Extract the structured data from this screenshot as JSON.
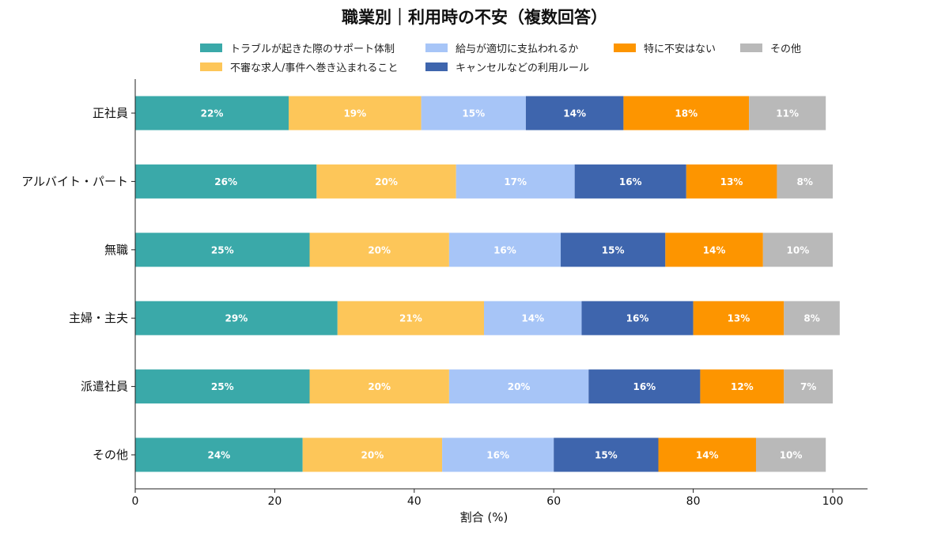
{
  "chart_data": {
    "type": "bar",
    "orientation": "horizontal",
    "stacked": true,
    "title": "職業別｜利用時の不安（複数回答）",
    "xlabel": "割合 (%)",
    "ylabel": "",
    "xlim": [
      0,
      100
    ],
    "xticks": [
      0,
      20,
      40,
      60,
      80,
      100
    ],
    "legend_position": "top",
    "categories": [
      "正社員",
      "アルバイト・パート",
      "無職",
      "主婦・主夫",
      "派遣社員",
      "その他"
    ],
    "series": [
      {
        "name": "トラブルが起きた際のサポート体制",
        "color": "#3aa9a9",
        "values": [
          22,
          26,
          25,
          29,
          25,
          24
        ]
      },
      {
        "name": "不審な求人/事件へ巻き込まれること",
        "color": "#fdc659",
        "values": [
          19,
          20,
          20,
          21,
          20,
          20
        ]
      },
      {
        "name": "給与が適切に支払われるか",
        "color": "#a7c5f7",
        "values": [
          15,
          17,
          16,
          14,
          20,
          16
        ]
      },
      {
        "name": "キャンセルなどの利用ルール",
        "color": "#3e65ad",
        "values": [
          14,
          16,
          15,
          16,
          16,
          15
        ]
      },
      {
        "name": "特に不安はない",
        "color": "#fd9500",
        "values": [
          18,
          13,
          14,
          13,
          12,
          14
        ]
      },
      {
        "name": "その他",
        "color": "#b9b9b9",
        "values": [
          11,
          8,
          10,
          8,
          7,
          10
        ]
      }
    ],
    "legend_order": [
      0,
      2,
      4,
      5,
      1,
      3
    ],
    "grid": false
  }
}
